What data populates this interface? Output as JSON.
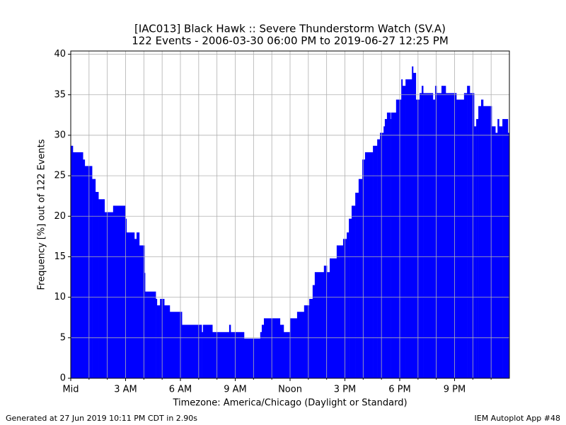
{
  "chart_data": {
    "type": "step-bar",
    "title": "[IAC013] Black Hawk :: Severe Thunderstorm Watch (SV.A)",
    "subtitle": "122 Events - 2006-03-30 06:00 PM to 2019-06-27 12:25 PM",
    "xlabel": "Timezone: America/Chicago (Daylight or Standard)",
    "ylabel": "Frequency [%] out of 122 Events",
    "footer_left": "Generated at 27 Jun 2019 10:11 PM CDT in 2.90s",
    "footer_right": "IEM Autoplot App #48",
    "color": "#0000ff",
    "grid": true,
    "x": [
      0,
      7,
      40,
      46,
      70,
      81,
      91,
      111,
      139,
      179,
      183,
      209,
      216,
      225,
      242,
      244,
      279,
      283,
      293,
      307,
      325,
      365,
      430,
      434,
      465,
      520,
      525,
      569,
      622,
      627,
      634,
      687,
      699,
      720,
      743,
      766,
      783,
      794,
      801,
      831,
      841,
      850,
      873,
      894,
      906,
      913,
      922,
      934,
      945,
      957,
      966,
      992,
      1006,
      1015,
      1027,
      1031,
      1038,
      1050,
      1052,
      1068,
      1085,
      1089,
      1099,
      1120,
      1124,
      1133,
      1145,
      1152,
      1157,
      1189,
      1196,
      1201,
      1217,
      1231,
      1266,
      1291,
      1301,
      1310,
      1324,
      1331,
      1338,
      1347,
      1354,
      1382,
      1394,
      1401,
      1406,
      1417,
      1435
    ],
    "values": [
      28.7,
      27.9,
      27.0,
      26.2,
      24.6,
      23.0,
      22.1,
      20.5,
      21.3,
      19.7,
      18.0,
      17.2,
      18.0,
      16.4,
      13.0,
      10.7,
      9.8,
      9.0,
      9.8,
      9.0,
      8.2,
      6.6,
      5.7,
      6.6,
      5.7,
      6.6,
      5.7,
      4.9,
      5.7,
      6.6,
      7.4,
      6.6,
      5.7,
      7.4,
      8.2,
      9.0,
      9.8,
      11.5,
      13.1,
      13.9,
      13.1,
      14.8,
      16.4,
      17.2,
      18.0,
      19.7,
      21.3,
      22.9,
      24.6,
      27.0,
      27.9,
      28.7,
      29.5,
      30.3,
      31.1,
      32.0,
      32.8,
      32.0,
      32.8,
      34.4,
      36.9,
      36.1,
      36.9,
      38.5,
      37.7,
      34.4,
      35.2,
      36.1,
      35.2,
      34.4,
      36.1,
      35.2,
      36.1,
      35.2,
      34.4,
      35.2,
      36.1,
      35.2,
      31.1,
      32.0,
      33.6,
      34.4,
      33.6,
      31.1,
      30.3,
      32.0,
      31.1,
      32.0,
      30.3
    ],
    "xlim": [
      0,
      1440
    ],
    "ylim": [
      0,
      40.4
    ],
    "yticks": [
      0,
      5,
      10,
      15,
      20,
      25,
      30,
      35,
      40
    ],
    "xticks": [
      {
        "value": 0,
        "label": "Mid"
      },
      {
        "value": 180,
        "label": "3 AM"
      },
      {
        "value": 360,
        "label": "6 AM"
      },
      {
        "value": 540,
        "label": "9 AM"
      },
      {
        "value": 720,
        "label": "Noon"
      },
      {
        "value": 900,
        "label": "3 PM"
      },
      {
        "value": 1080,
        "label": "6 PM"
      },
      {
        "value": 1260,
        "label": "9 PM"
      }
    ],
    "xminorticks": [
      60,
      120,
      240,
      300,
      420,
      480,
      600,
      660,
      780,
      840,
      960,
      1020,
      1140,
      1200,
      1320,
      1380
    ]
  }
}
